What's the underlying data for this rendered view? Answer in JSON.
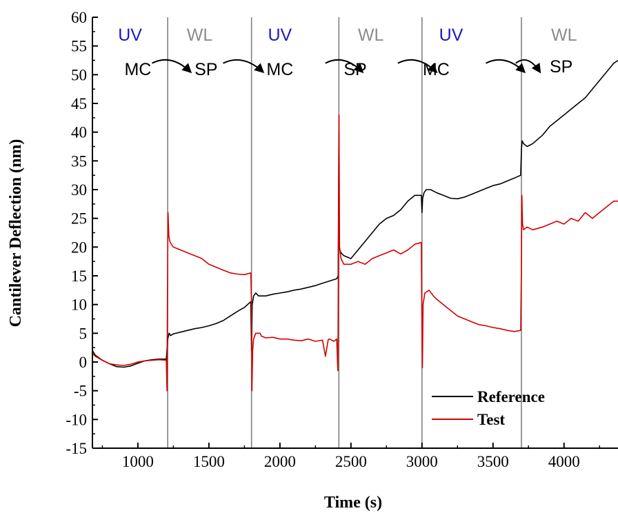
{
  "chart_data": {
    "type": "line",
    "xlabel": "Time (s)",
    "ylabel": "Cantilever Deflection (nm)",
    "xlim": [
      680,
      4380
    ],
    "ylim": [
      -15,
      60
    ],
    "x_ticks": [
      1000,
      1500,
      2000,
      2500,
      3000,
      3500,
      4000
    ],
    "y_ticks": [
      60,
      55,
      50,
      45,
      40,
      35,
      30,
      25,
      20,
      15,
      10,
      5,
      0,
      -5,
      -10,
      -15
    ],
    "grid": false,
    "legend": "bottom-center",
    "colors": {
      "uv": "#1a1ab8",
      "wl": "#8c8c8c",
      "reference": "#000000",
      "test": "#d40000",
      "divider": "#808080"
    },
    "dividers": [
      1210,
      1800,
      2415,
      3000,
      3700
    ],
    "phase_labels": [
      {
        "text": "UV",
        "x": 945,
        "y": 57,
        "type": "uv"
      },
      {
        "text": "WL",
        "x": 1435,
        "y": 57,
        "type": "wl"
      },
      {
        "text": "UV",
        "x": 2000,
        "y": 57,
        "type": "uv"
      },
      {
        "text": "WL",
        "x": 2640,
        "y": 57,
        "type": "wl"
      },
      {
        "text": "UV",
        "x": 3205,
        "y": 57,
        "type": "uv"
      },
      {
        "text": "WL",
        "x": 4000,
        "y": 57,
        "type": "wl"
      }
    ],
    "state_labels": [
      {
        "text": "MC",
        "x": 1000,
        "y": 51
      },
      {
        "text": "SP",
        "x": 1480,
        "y": 51
      },
      {
        "text": "MC",
        "x": 2000,
        "y": 51
      },
      {
        "text": "SP",
        "x": 2530,
        "y": 51
      },
      {
        "text": "MC",
        "x": 3100,
        "y": 51
      },
      {
        "text": "SP",
        "x": 3980,
        "y": 51.5
      }
    ],
    "arrows": [
      {
        "from": [
          1100,
          52
        ],
        "to": [
          1370,
          50.5
        ]
      },
      {
        "from": [
          1600,
          52
        ],
        "to": [
          1880,
          50.5
        ]
      },
      {
        "from": [
          2320,
          52
        ],
        "to": [
          2580,
          50.5
        ]
      },
      {
        "from": [
          2830,
          52
        ],
        "to": [
          3100,
          50.5
        ]
      },
      {
        "from": [
          3450,
          52
        ],
        "to": [
          3720,
          50.5
        ]
      },
      {
        "from": [
          3660,
          52
        ],
        "to": [
          3830,
          50.5
        ]
      }
    ],
    "series": [
      {
        "name": "Reference",
        "color": "#000000",
        "x": [
          680,
          700,
          750,
          800,
          850,
          900,
          950,
          1000,
          1050,
          1100,
          1150,
          1200,
          1210,
          1215,
          1220,
          1230,
          1250,
          1300,
          1350,
          1400,
          1450,
          1500,
          1550,
          1600,
          1650,
          1700,
          1750,
          1795,
          1800,
          1805,
          1815,
          1830,
          1850,
          1900,
          1950,
          2000,
          2050,
          2100,
          2150,
          2200,
          2250,
          2300,
          2350,
          2400,
          2410,
          2415,
          2418,
          2422,
          2430,
          2450,
          2500,
          2550,
          2600,
          2650,
          2700,
          2750,
          2800,
          2850,
          2900,
          2950,
          2995,
          3000,
          3005,
          3015,
          3030,
          3060,
          3100,
          3150,
          3200,
          3250,
          3300,
          3350,
          3400,
          3450,
          3500,
          3550,
          3600,
          3650,
          3695,
          3700,
          3705,
          3715,
          3740,
          3780,
          3850,
          3900,
          3950,
          4000,
          4050,
          4100,
          4150,
          4200,
          4250,
          4300,
          4350,
          4380
        ],
        "y": [
          2,
          1.2,
          0.3,
          -0.3,
          -0.8,
          -0.9,
          -0.7,
          -0.2,
          0.2,
          0.4,
          0.5,
          0.5,
          4,
          4.5,
          5,
          4.6,
          4.9,
          5.2,
          5.5,
          5.8,
          6,
          6.3,
          6.7,
          7.2,
          8,
          8.8,
          9.5,
          10.5,
          2,
          10,
          11.5,
          12,
          11.5,
          11.5,
          11.8,
          12,
          12.2,
          12.5,
          12.7,
          13,
          13.3,
          13.7,
          14.1,
          14.5,
          15,
          40,
          20,
          19.5,
          19,
          18.5,
          18,
          19.5,
          21,
          22.5,
          24,
          25,
          25.5,
          26.5,
          28,
          29,
          29,
          26,
          28.5,
          29.5,
          30,
          30,
          29.5,
          29,
          28.5,
          28.4,
          28.7,
          29.2,
          29.7,
          30.2,
          30.7,
          31,
          31.5,
          32,
          32.5,
          37,
          38.5,
          38,
          37.5,
          38,
          39.5,
          41,
          42,
          43,
          44,
          45,
          46,
          47.5,
          49,
          50.5,
          52,
          52.5
        ]
      },
      {
        "name": "Test",
        "color": "#d40000",
        "x": [
          680,
          700,
          750,
          800,
          850,
          900,
          950,
          1000,
          1050,
          1100,
          1150,
          1200,
          1205,
          1208,
          1212,
          1218,
          1225,
          1235,
          1250,
          1300,
          1350,
          1400,
          1450,
          1500,
          1550,
          1600,
          1650,
          1700,
          1750,
          1795,
          1800,
          1803,
          1808,
          1815,
          1830,
          1850,
          1860,
          1870,
          1900,
          1950,
          2000,
          2050,
          2100,
          2150,
          2200,
          2250,
          2300,
          2320,
          2340,
          2350,
          2380,
          2400,
          2405,
          2408,
          2412,
          2416,
          2420,
          2430,
          2450,
          2500,
          2550,
          2600,
          2650,
          2700,
          2750,
          2800,
          2850,
          2900,
          2950,
          2995,
          3000,
          3003,
          3008,
          3020,
          3050,
          3080,
          3100,
          3150,
          3200,
          3250,
          3300,
          3350,
          3400,
          3450,
          3500,
          3550,
          3600,
          3650,
          3695,
          3700,
          3703,
          3708,
          3715,
          3740,
          3780,
          3850,
          3900,
          3950,
          4000,
          4050,
          4100,
          4150,
          4200,
          4250,
          4300,
          4350,
          4380
        ],
        "y": [
          1.5,
          1,
          0.3,
          -0.3,
          -0.5,
          -0.6,
          -0.4,
          0,
          0.2,
          0.3,
          0.4,
          0.3,
          -5,
          10,
          26,
          22,
          21,
          20.5,
          20,
          19.5,
          19,
          18.5,
          18,
          17,
          16.5,
          16,
          15.5,
          15.3,
          15.2,
          15.5,
          10,
          -5,
          2,
          4,
          5,
          5,
          5,
          4.5,
          4.2,
          4.3,
          4,
          4,
          3.8,
          3.7,
          4,
          3.6,
          3.8,
          1,
          3.9,
          4,
          3.6,
          4,
          0,
          -1.5,
          20,
          43,
          20,
          18,
          17,
          17,
          17.5,
          17,
          18,
          18.5,
          19,
          19.5,
          18.8,
          19.5,
          20.5,
          20.8,
          5,
          -1,
          10,
          12,
          12.5,
          11.5,
          11,
          10,
          9,
          8,
          7.5,
          7,
          6.5,
          6.3,
          6,
          5.8,
          5.5,
          5.3,
          5.5,
          17,
          29,
          24,
          23,
          23.5,
          23,
          23.5,
          24,
          24.5,
          24,
          25,
          24.5,
          26,
          25,
          26,
          27,
          28,
          28
        ]
      }
    ]
  }
}
